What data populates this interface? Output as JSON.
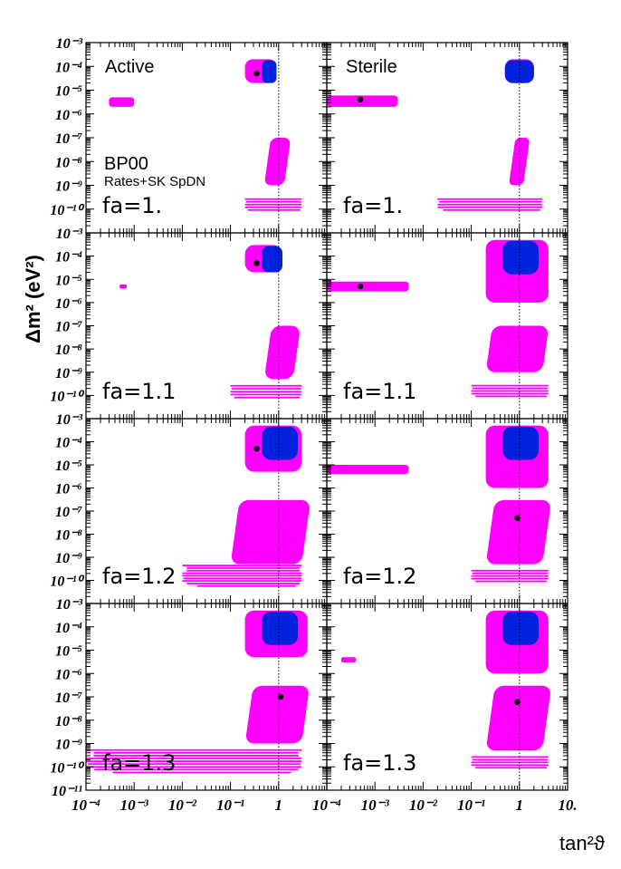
{
  "figure": {
    "ylabel": "Δm² (eV²)",
    "xlabel": "tan²ϑ",
    "model_label": "BP00",
    "data_label": "Rates+SK SpDN",
    "col_titles": [
      "Active",
      "Sterile"
    ],
    "x_tick_labels": [
      "10⁻⁴",
      "10⁻³",
      "10⁻²",
      "10⁻¹",
      "1",
      "10."
    ],
    "y_tick_labels_top": [
      "10⁻³",
      "10⁻⁴",
      "10⁻⁵",
      "10⁻⁶",
      "10⁻⁷",
      "10⁻⁸",
      "10⁻⁹",
      "10⁻¹⁰"
    ],
    "y_tick_labels_bottom": [
      "10⁻³",
      "10⁻⁴",
      "10⁻⁵",
      "10⁻⁶",
      "10⁻⁷",
      "10⁻⁸",
      "10⁻⁹",
      "10⁻¹⁰",
      "10⁻¹¹"
    ],
    "colors": {
      "region_magenta": "#ff00ff",
      "region_blue": "#0022dd",
      "best_fit": "#000000",
      "frame": "#000000"
    }
  },
  "chart_data": {
    "type": "contour",
    "x_scale": "log",
    "y_scale": "log",
    "xlim": [
      0.0001,
      10
    ],
    "ylim": [
      1e-11,
      0.001
    ],
    "grid": false,
    "x_ticks": [
      0.0001,
      0.001,
      0.01,
      0.1,
      1,
      10
    ],
    "y_ticks": [
      0.001,
      0.0001,
      1e-05,
      1e-06,
      1e-07,
      1e-08,
      1e-09,
      1e-10,
      1e-11
    ],
    "reference_line_x": 1,
    "panels": [
      {
        "name": "active-fa-1.0",
        "column": "Active",
        "row_label": "fa=1.",
        "best_fit": [
          0.35,
          5e-05
        ],
        "regions": {
          "LMA": {
            "x": [
              0.2,
              0.9
            ],
            "y": [
              2e-05,
              0.0002
            ]
          },
          "SMA": {
            "x": [
              0.0003,
              0.001
            ],
            "y": [
              2e-06,
              5e-06
            ]
          },
          "LOW": {
            "x": [
              0.5,
              1.3
            ],
            "y": [
              1e-09,
              1e-07
            ]
          },
          "VO": {
            "x": [
              0.2,
              3
            ],
            "y": [
              8e-11,
              3e-10
            ]
          }
        }
      },
      {
        "name": "sterile-fa-1.0",
        "column": "Sterile",
        "row_label": "fa=1.",
        "best_fit": [
          0.0005,
          4e-06
        ],
        "regions": {
          "LMA": {
            "x": [
              0.5,
              2
            ],
            "y": [
              2e-05,
              0.0002
            ]
          },
          "SMA": {
            "x": [
              0.0001,
              0.003
            ],
            "y": [
              2e-06,
              6e-06
            ]
          },
          "LOW": {
            "x": [
              0.6,
              1.2
            ],
            "y": [
              1e-09,
              1e-07
            ]
          },
          "VO": {
            "x": [
              0.02,
              3
            ],
            "y": [
              8e-11,
              3e-10
            ]
          }
        }
      },
      {
        "name": "active-fa-1.1",
        "column": "Active",
        "row_label": "fa=1.1",
        "best_fit": [
          0.35,
          5e-05
        ],
        "regions": {
          "LMA": {
            "x": [
              0.2,
              1.2
            ],
            "y": [
              2e-05,
              0.0003
            ]
          },
          "SMA": {
            "x": [
              0.0005,
              0.0007
            ],
            "y": [
              4e-06,
              6e-06
            ]
          },
          "LOW": {
            "x": [
              0.5,
              2
            ],
            "y": [
              5e-10,
              1e-07
            ]
          },
          "VO": {
            "x": [
              0.1,
              3
            ],
            "y": [
              7e-11,
              3e-10
            ]
          }
        }
      },
      {
        "name": "sterile-fa-1.1",
        "column": "Sterile",
        "row_label": "fa=1.1",
        "best_fit": [
          0.0005,
          5e-06
        ],
        "regions": {
          "LMA": {
            "x": [
              0.2,
              4
            ],
            "y": [
              1e-06,
              0.0005
            ]
          },
          "SMA": {
            "x": [
              0.0001,
              0.005
            ],
            "y": [
              3e-06,
              8e-06
            ]
          },
          "LOW": {
            "x": [
              0.2,
              3
            ],
            "y": [
              1e-09,
              1e-07
            ]
          },
          "VO": {
            "x": [
              0.1,
              4
            ],
            "y": [
              8e-11,
              3e-10
            ]
          }
        }
      },
      {
        "name": "active-fa-1.2",
        "column": "Active",
        "row_label": "fa=1.2",
        "best_fit": [
          0.35,
          5e-05
        ],
        "regions": {
          "LMA": {
            "x": [
              0.2,
              3
            ],
            "y": [
              5e-06,
              0.0005
            ]
          },
          "LOW": {
            "x": [
              0.1,
              3
            ],
            "y": [
              5e-10,
              3e-07
            ]
          },
          "VO": {
            "x": [
              0.01,
              3
            ],
            "y": [
              5e-11,
              5e-10
            ]
          }
        }
      },
      {
        "name": "sterile-fa-1.2",
        "column": "Sterile",
        "row_label": "fa=1.2",
        "best_fit": [
          0.9,
          5e-08
        ],
        "regions": {
          "LMA": {
            "x": [
              0.2,
              4
            ],
            "y": [
              1e-06,
              0.0005
            ]
          },
          "SMA": {
            "x": [
              0.0001,
              0.005
            ],
            "y": [
              4e-06,
              1e-05
            ]
          },
          "LOW": {
            "x": [
              0.2,
              3
            ],
            "y": [
              5e-10,
              3e-07
            ]
          },
          "VO": {
            "x": [
              0.1,
              4
            ],
            "y": [
              8e-11,
              3e-10
            ]
          }
        }
      },
      {
        "name": "active-fa-1.3",
        "column": "Active",
        "row_label": "fa=1.3",
        "best_fit": [
          1.1,
          1e-07
        ],
        "regions": {
          "LMA": {
            "x": [
              0.2,
              4
            ],
            "y": [
              5e-06,
              0.0005
            ]
          },
          "LOW": {
            "x": [
              0.2,
              3
            ],
            "y": [
              1e-09,
              3e-07
            ]
          },
          "VO": {
            "x": [
              0.0001,
              3
            ],
            "y": [
              5e-11,
              6e-10
            ]
          }
        }
      },
      {
        "name": "sterile-fa-1.3",
        "column": "Sterile",
        "row_label": "fa=1.3",
        "best_fit": [
          0.9,
          6e-08
        ],
        "regions": {
          "LMA": {
            "x": [
              0.2,
              4
            ],
            "y": [
              1e-06,
              0.0005
            ]
          },
          "SMA": {
            "x": [
              0.0002,
              0.0004
            ],
            "y": [
              3e-06,
              5e-06
            ]
          },
          "LOW": {
            "x": [
              0.2,
              3
            ],
            "y": [
              5e-10,
              3e-07
            ]
          },
          "VO": {
            "x": [
              0.1,
              4
            ],
            "y": [
              8e-11,
              3e-10
            ]
          }
        }
      }
    ]
  }
}
